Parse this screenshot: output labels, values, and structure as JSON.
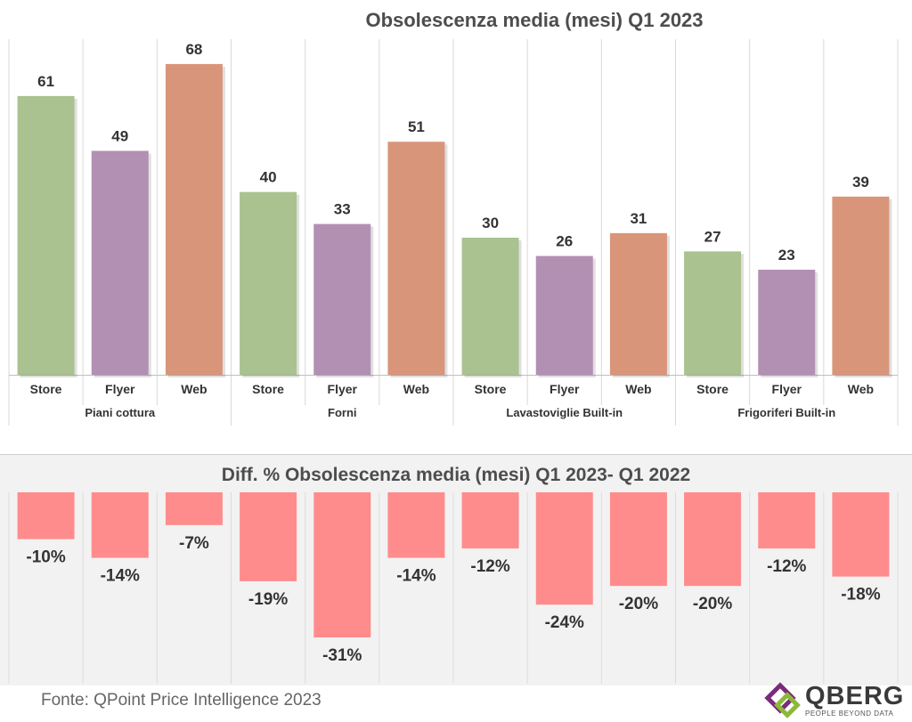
{
  "chart_data": [
    {
      "type": "bar",
      "title": "Obsolescenza media (mesi) Q1 2023",
      "groups": [
        "Piani cottura",
        "Forni",
        "Lavastoviglie Built-in",
        "Frigoriferi Built-in"
      ],
      "categories": [
        "Store",
        "Flyer",
        "Web"
      ],
      "values": [
        [
          61,
          49,
          68
        ],
        [
          40,
          33,
          51
        ],
        [
          30,
          26,
          31
        ],
        [
          27,
          23,
          39
        ]
      ],
      "value_labels": [
        [
          "61",
          "49",
          "68"
        ],
        [
          "40",
          "33",
          "51"
        ],
        [
          "30",
          "26",
          "31"
        ],
        [
          "27",
          "23",
          "39"
        ]
      ],
      "ylim": [
        0,
        75
      ],
      "grid": false,
      "colors": {
        "Store": "#a9c28f",
        "Flyer": "#b290b3",
        "Web": "#d9957a"
      }
    },
    {
      "type": "bar",
      "title": "Diff. % Obsolescenza media (mesi) Q1 2023- Q1 2022",
      "values": [
        -10,
        -14,
        -7,
        -19,
        -31,
        -14,
        -12,
        -24,
        -20,
        -20,
        -12,
        -18
      ],
      "value_labels": [
        "-10%",
        "-14%",
        "-7%",
        "-19%",
        "-31%",
        "-14%",
        "-12%",
        "-24%",
        "-20%",
        "-20%",
        "-12%",
        "-18%"
      ],
      "ylim": [
        -31,
        0
      ],
      "color": "#ff8c8c",
      "background": "#f2f2f2"
    }
  ],
  "footer": {
    "source": "Fonte: QPoint Price Intelligence 2023",
    "logo_name": "QBERG",
    "logo_tagline": "PEOPLE BEYOND DATA"
  }
}
